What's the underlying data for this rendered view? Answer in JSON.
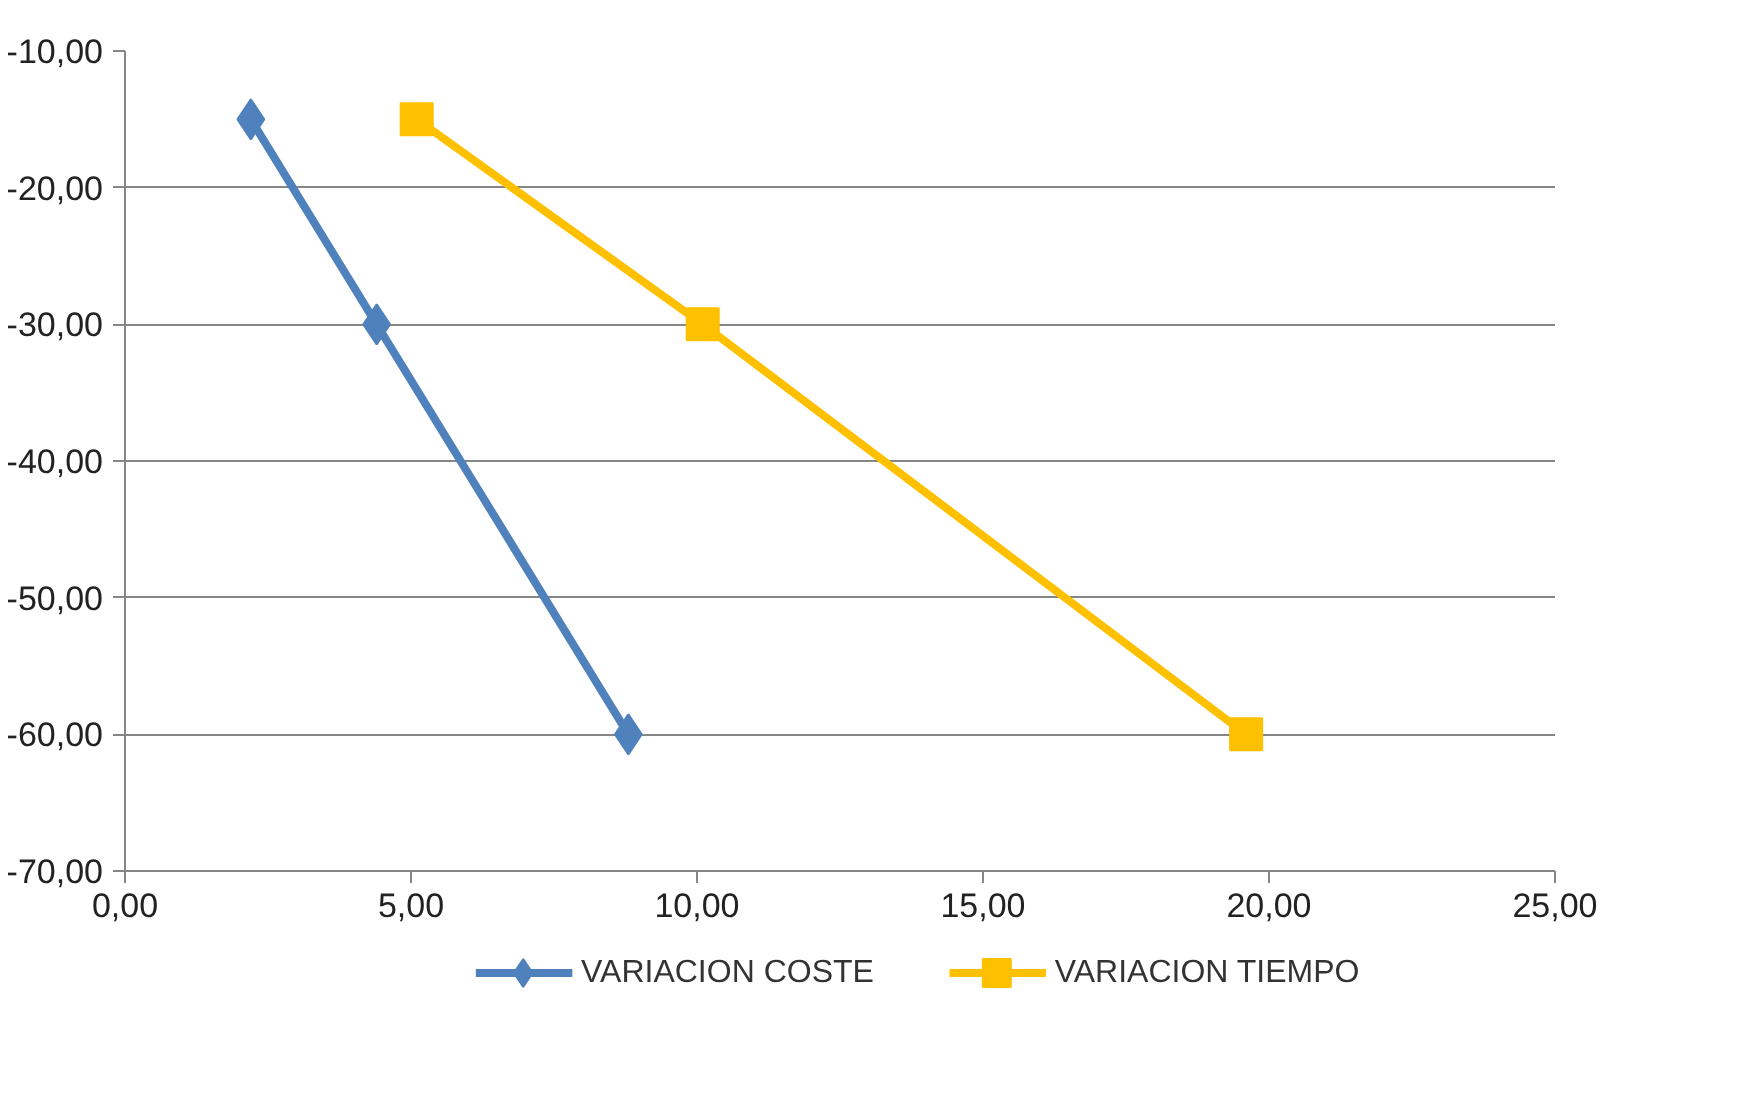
{
  "chart_data": {
    "type": "line",
    "xlim": [
      0,
      25
    ],
    "ylim": [
      -70,
      -10
    ],
    "xticks": [
      {
        "value": 0,
        "label": "0,00"
      },
      {
        "value": 5,
        "label": "5,00"
      },
      {
        "value": 10,
        "label": "10,00"
      },
      {
        "value": 15,
        "label": "15,00"
      },
      {
        "value": 20,
        "label": "20,00"
      },
      {
        "value": 25,
        "label": "25,00"
      }
    ],
    "yticks": [
      {
        "value": -70,
        "label": "-70,00"
      },
      {
        "value": -60,
        "label": "-60,00"
      },
      {
        "value": -50,
        "label": "-50,00"
      },
      {
        "value": -40,
        "label": "-40,00"
      },
      {
        "value": -30,
        "label": "-30,00"
      },
      {
        "value": -20,
        "label": "-20,00"
      },
      {
        "value": -10,
        "label": "-10,00"
      }
    ],
    "grid": "y",
    "legend": "bottom",
    "line_style": "solid",
    "series": [
      {
        "name": "VARIACION COSTE",
        "color": "#4f81bd",
        "marker": "diamond",
        "x": [
          2.2,
          4.4,
          8.8
        ],
        "values": [
          -15,
          -30,
          -60
        ]
      },
      {
        "name": "VARIACION TIEMPO",
        "color": "#ffc000",
        "marker": "square",
        "x": [
          5.1,
          10.1,
          19.6
        ],
        "values": [
          -15,
          -30,
          -60
        ]
      }
    ]
  }
}
